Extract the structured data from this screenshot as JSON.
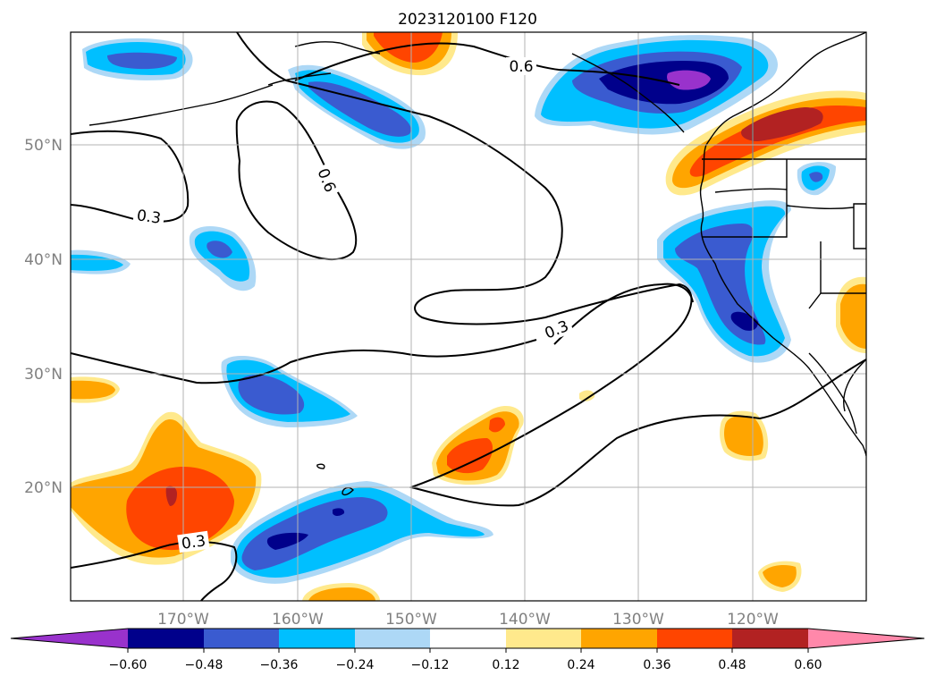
{
  "title": "2023120100 F120",
  "map": {
    "lon_ticks": [
      "170°W",
      "160°W",
      "150°W",
      "140°W",
      "130°W",
      "120°W"
    ],
    "lat_ticks": [
      "50°N",
      "40°N",
      "30°N",
      "20°N"
    ],
    "grid": true,
    "contour_labels": [
      "0.6",
      "0.6",
      "0.3",
      "0.3",
      "0.3"
    ]
  },
  "colorbar": {
    "ticks": [
      "−0.60",
      "−0.48",
      "−0.36",
      "−0.24",
      "−0.12",
      "0.12",
      "0.24",
      "0.36",
      "0.48",
      "0.60"
    ],
    "colors": {
      "lt_-0.60": "#9932cc",
      "-0.60_-0.48": "#00008b",
      "-0.48_-0.36": "#3a5bd0",
      "-0.36_-0.24": "#00bfff",
      "-0.24_-0.12": "#add8f6",
      "-0.12_0.12": "#ffffff",
      "0.12_0.24": "#ffe98c",
      "0.24_0.36": "#ffa500",
      "0.36_0.48": "#ff4500",
      "0.48_0.60": "#b22222",
      "gt_0.60": "#ff88aa"
    }
  }
}
